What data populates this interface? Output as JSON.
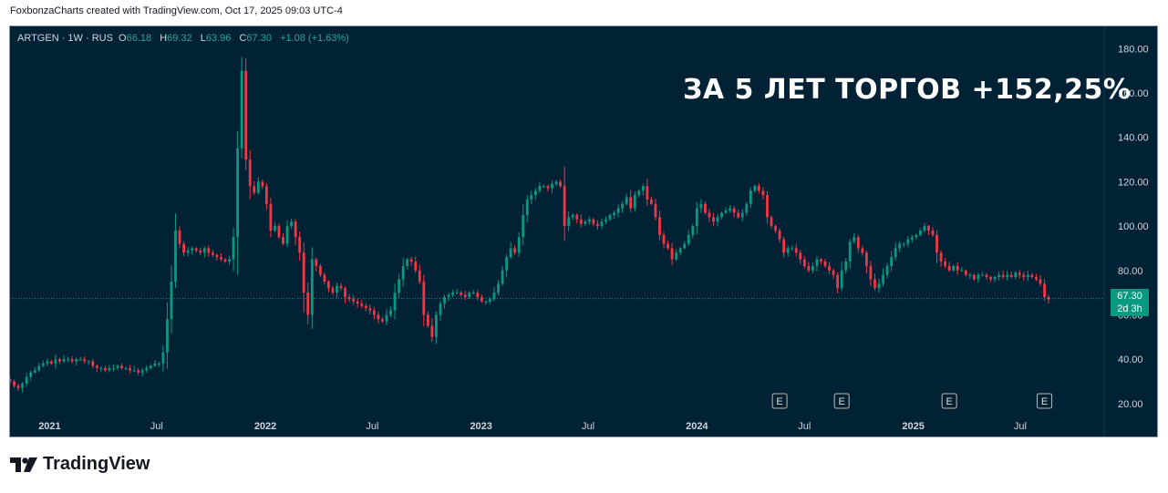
{
  "header": {
    "caption": "FoxbonzaCharts created with TradingView.com, Oct 17, 2025 09:03 UTC-4"
  },
  "legend": {
    "symbol": "ARTGEN · 1W · RUS",
    "open_label": "O",
    "open": "66.18",
    "high_label": "H",
    "high": "69.32",
    "low_label": "L",
    "low": "63.96",
    "close_label": "C",
    "close": "67.30",
    "change": "+1.08 (+1.63%)"
  },
  "headline": "ЗА 5 ЛЕТ ТОРГОВ +152,25%",
  "price_badge": {
    "price": "67.30",
    "countdown": "2d 3h"
  },
  "earnings_marker": "E",
  "footer": {
    "brand": "TradingView"
  },
  "colors": {
    "background": "#012235",
    "up": "#089981",
    "down": "#f23645",
    "text": "#d1d4dc"
  },
  "chart_data": {
    "type": "candlestick",
    "title": "",
    "ylim": [
      15,
      190
    ],
    "y_ticks": [
      "20.00",
      "40.00",
      "60.00",
      "80.00",
      "100.00",
      "120.00",
      "140.00",
      "160.00",
      "180.00"
    ],
    "x_labels": [
      {
        "label": "2021",
        "date": "2021-01-01"
      },
      {
        "label": "Jul",
        "date": "2021-07-01"
      },
      {
        "label": "2022",
        "date": "2022-01-01"
      },
      {
        "label": "Jul",
        "date": "2022-07-01"
      },
      {
        "label": "2023",
        "date": "2023-01-01"
      },
      {
        "label": "Jul",
        "date": "2023-07-01"
      },
      {
        "label": "2024",
        "date": "2024-01-01"
      },
      {
        "label": "Jul",
        "date": "2024-07-01"
      },
      {
        "label": "2025",
        "date": "2025-01-01"
      },
      {
        "label": "Jul",
        "date": "2025-07-01"
      }
    ],
    "x_range": [
      "2020-10-26",
      "2025-11-20"
    ],
    "last_price": 67.3,
    "earnings_dates": [
      "2024-05-20",
      "2024-09-02",
      "2025-03-03",
      "2025-08-11"
    ],
    "weekly_closes_series_start": "2020-10-26",
    "weekly_closes": [
      30,
      28,
      27,
      29,
      32,
      34,
      35,
      37,
      38,
      39,
      38,
      40,
      39,
      40,
      40,
      39,
      40,
      40,
      39,
      39,
      37,
      36,
      36,
      35,
      36,
      36,
      37,
      36,
      36,
      35,
      35,
      34,
      35,
      36,
      37,
      38,
      38,
      43,
      58,
      75,
      98,
      92,
      88,
      89,
      90,
      89,
      88,
      90,
      88,
      87,
      86,
      85,
      84,
      85,
      95,
      135,
      170,
      130,
      118,
      115,
      120,
      118,
      110,
      98,
      100,
      95,
      92,
      100,
      102,
      95,
      88,
      70,
      60,
      85,
      82,
      78,
      75,
      72,
      70,
      73,
      72,
      68,
      67,
      66,
      65,
      64,
      63,
      62,
      60,
      58,
      57,
      60,
      62,
      70,
      76,
      82,
      85,
      84,
      80,
      75,
      60,
      55,
      50,
      60,
      65,
      68,
      69,
      70,
      70,
      69,
      68,
      70,
      70,
      68,
      66,
      66,
      67,
      70,
      74,
      80,
      86,
      90,
      88,
      95,
      105,
      112,
      114,
      116,
      118,
      118,
      117,
      119,
      120,
      118,
      100,
      104,
      105,
      103,
      101,
      102,
      103,
      101,
      100,
      102,
      103,
      105,
      106,
      108,
      110,
      113,
      108,
      114,
      116,
      118,
      112,
      110,
      104,
      96,
      92,
      90,
      85,
      88,
      90,
      92,
      96,
      100,
      108,
      110,
      106,
      104,
      102,
      104,
      106,
      107,
      108,
      106,
      104,
      106,
      110,
      116,
      118,
      116,
      114,
      104,
      100,
      98,
      94,
      88,
      90,
      90,
      88,
      85,
      82,
      80,
      82,
      85,
      84,
      82,
      80,
      78,
      72,
      80,
      84,
      93,
      95,
      90,
      88,
      82,
      76,
      72,
      74,
      78,
      82,
      86,
      90,
      92,
      92,
      94,
      95,
      96,
      98,
      100,
      98,
      96,
      88,
      84,
      82,
      80,
      82,
      80,
      80,
      78,
      78,
      76,
      78,
      78,
      77,
      76,
      77,
      78,
      77,
      78,
      77,
      79,
      78,
      77,
      78,
      77,
      76,
      74,
      68,
      67
    ]
  }
}
